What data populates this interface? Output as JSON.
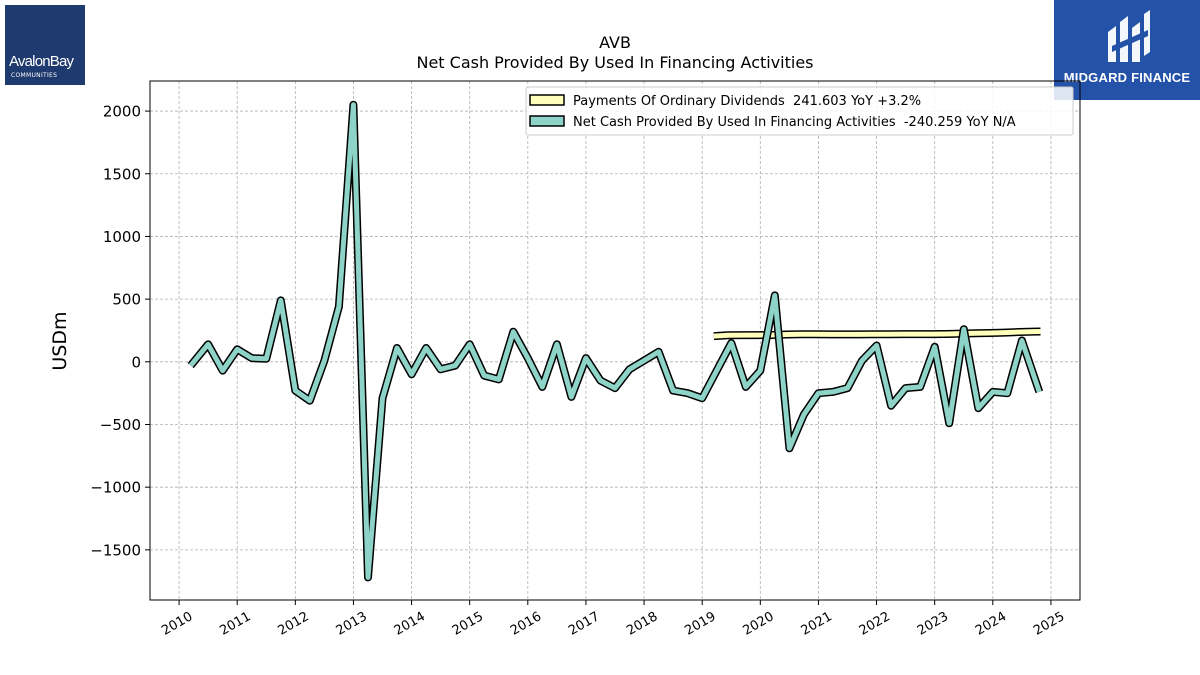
{
  "logos": {
    "left": {
      "brand": "AvalonBay",
      "sub": "COMMUNITIES"
    },
    "right": {
      "name": "MIDGARD FINANCE"
    }
  },
  "colors": {
    "dividends": "#ffffbb",
    "financing": "#8dd3c7",
    "outline": "#000000",
    "grid": "#b0b0b0"
  },
  "chart_data": {
    "type": "line",
    "title": "AVB",
    "subtitle": "Net Cash Provided By Used In Financing Activities",
    "ylabel": "USDm",
    "xlabel": "",
    "ylim": [
      -1900,
      2240
    ],
    "xlim": [
      2009.5,
      2025.5
    ],
    "yticks": [
      2000,
      1500,
      1000,
      500,
      0,
      -500,
      -1000,
      -1500
    ],
    "ytick_labels": [
      "2000",
      "1500",
      "1000",
      "500",
      "0",
      "−500",
      "−1000",
      "−1500"
    ],
    "xticks": [
      2010,
      2011,
      2012,
      2013,
      2014,
      2015,
      2016,
      2017,
      2018,
      2019,
      2020,
      2021,
      2022,
      2023,
      2024,
      2025
    ],
    "xtick_labels": [
      "2010",
      "2011",
      "2012",
      "2013",
      "2014",
      "2015",
      "2016",
      "2017",
      "2018",
      "2019",
      "2020",
      "2021",
      "2022",
      "2023",
      "2024",
      "2025"
    ],
    "grid": true,
    "legend_position": "top-right",
    "series": [
      {
        "name": "Payments Of Ordinary Dividends",
        "legend": "Payments Of Ordinary Dividends  241.603 YoY +3.2%",
        "color": "#ffffbb",
        "x": [
          2019.2,
          2019.45,
          2019.7,
          2019.95,
          2020.2,
          2020.45,
          2020.7,
          2020.95,
          2021.2,
          2021.45,
          2021.7,
          2021.95,
          2022.2,
          2022.45,
          2022.7,
          2022.95,
          2023.2,
          2023.45,
          2023.7,
          2023.95,
          2024.2,
          2024.45,
          2024.7,
          2024.82
        ],
        "values": [
          205,
          212,
          213,
          213,
          214,
          218,
          220,
          220,
          219,
          219,
          219,
          220,
          220,
          221,
          221,
          221,
          222,
          225,
          228,
          230,
          233,
          238,
          241,
          241.603
        ]
      },
      {
        "name": "Net Cash Provided By Used In Financing Activities",
        "legend": "Net Cash Provided By Used In Financing Activities  -240.259 YoY N/A",
        "color": "#8dd3c7",
        "x": [
          2010.2,
          2010.5,
          2010.75,
          2011.0,
          2011.25,
          2011.5,
          2011.75,
          2012.0,
          2012.25,
          2012.5,
          2012.75,
          2013.0,
          2013.25,
          2013.5,
          2013.75,
          2014.0,
          2014.25,
          2014.5,
          2014.75,
          2015.0,
          2015.25,
          2015.5,
          2015.75,
          2016.0,
          2016.25,
          2016.5,
          2016.75,
          2017.0,
          2017.25,
          2017.5,
          2017.75,
          2018.0,
          2018.25,
          2018.5,
          2018.75,
          2019.0,
          2019.25,
          2019.5,
          2019.75,
          2020.0,
          2020.25,
          2020.5,
          2020.75,
          2021.0,
          2021.25,
          2021.5,
          2021.75,
          2022.0,
          2022.25,
          2022.5,
          2022.75,
          2023.0,
          2023.25,
          2023.5,
          2023.75,
          2024.0,
          2024.25,
          2024.5,
          2024.8
        ],
        "values": [
          -30,
          140,
          -70,
          100,
          30,
          25,
          490,
          -230,
          -310,
          10,
          440,
          2050,
          -1720,
          -290,
          110,
          -100,
          110,
          -60,
          -30,
          140,
          -110,
          -140,
          240,
          30,
          -200,
          140,
          -280,
          30,
          -150,
          -210,
          -60,
          10,
          80,
          -230,
          -250,
          -290,
          -70,
          150,
          -200,
          -70,
          530,
          -690,
          -420,
          -250,
          -240,
          -210,
          10,
          130,
          -350,
          -210,
          -200,
          120,
          -490,
          260,
          -370,
          -240,
          -250,
          170,
          -240.259
        ]
      }
    ]
  }
}
